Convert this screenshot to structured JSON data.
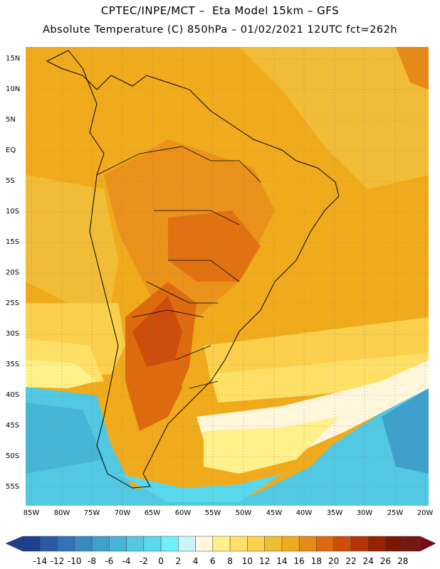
{
  "header": {
    "line1": "CPTEC/INPE/MCT –  Eta Model 15km – GFS",
    "line2": "Absolute Temperature (C) 850hPa – 01/02/2021 12UTC fct=262h"
  },
  "map": {
    "region": "South America",
    "lat_ticks": [
      "15N",
      "10N",
      "5N",
      "EQ",
      "5S",
      "10S",
      "15S",
      "20S",
      "25S",
      "30S",
      "35S",
      "40S",
      "45S",
      "50S",
      "55S"
    ],
    "lon_ticks": [
      "85W",
      "80W",
      "75W",
      "70W",
      "65W",
      "60W",
      "55W",
      "50W",
      "45W",
      "40W",
      "35W",
      "30W",
      "25W",
      "20W"
    ],
    "lat_range": [
      16.5,
      -57.5
    ],
    "lon_range": [
      -86,
      -19.5
    ]
  },
  "colorbar": {
    "labels": [
      "-14",
      "-12",
      "-10",
      "-8",
      "-6",
      "-4",
      "-2",
      "0",
      "2",
      "4",
      "6",
      "8",
      "10",
      "12",
      "14",
      "16",
      "18",
      "20",
      "22",
      "24",
      "26",
      "28"
    ],
    "colors": [
      "#1d3f8f",
      "#2a5aa6",
      "#3372b6",
      "#3a8ac2",
      "#3fa0cc",
      "#45b6d8",
      "#52c8e2",
      "#5ad8ec",
      "#6ef0f8",
      "#c8f6fb",
      "#fff6dc",
      "#fff08a",
      "#ffe066",
      "#fad04c",
      "#f2bd36",
      "#f0ab1c",
      "#e88a1a",
      "#de6a10",
      "#cc4e0a",
      "#b43406",
      "#962204",
      "#7a1604",
      "#781612"
    ]
  }
}
